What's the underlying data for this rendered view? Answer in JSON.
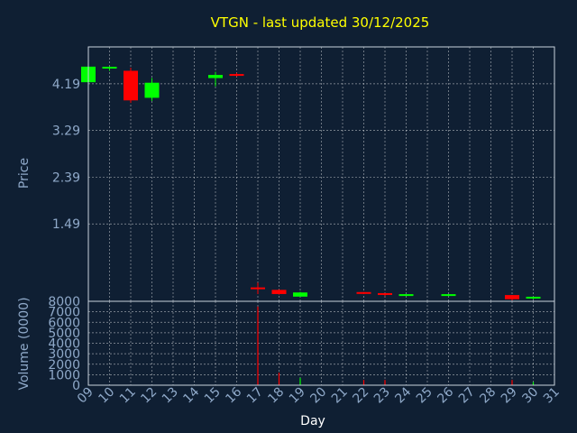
{
  "title": "VTGN - last updated 30/12/2025",
  "colors": {
    "background": "#0f1f33",
    "title": "#ffff00",
    "axis_text": "#8fa9c9",
    "up": "#00ff00",
    "down": "#ff0000"
  },
  "chart_data": [
    {
      "type": "candlestick",
      "ylabel": "Price",
      "yticks": [
        "1.49",
        "2.39",
        "3.29",
        "4.19"
      ],
      "ylim": [
        0.0,
        4.9
      ],
      "grid": true,
      "x": [
        "09",
        "10",
        "11",
        "12",
        "13",
        "14",
        "15",
        "16",
        "17",
        "18",
        "19",
        "20",
        "21",
        "22",
        "23",
        "24",
        "25",
        "26",
        "27",
        "28",
        "29",
        "30",
        "31"
      ],
      "candles": [
        {
          "day": "09",
          "open": 4.22,
          "high": 4.56,
          "low": 4.22,
          "close": 4.52
        },
        {
          "day": "10",
          "open": 4.5,
          "high": 4.52,
          "low": 4.44,
          "close": 4.5
        },
        {
          "day": "11",
          "open": 4.44,
          "high": 4.5,
          "low": 3.82,
          "close": 3.87
        },
        {
          "day": "12",
          "open": 3.92,
          "high": 4.3,
          "low": 3.86,
          "close": 4.21
        },
        {
          "day": "15",
          "open": 4.3,
          "high": 4.42,
          "low": 4.14,
          "close": 4.36
        },
        {
          "day": "16",
          "open": 4.36,
          "high": 4.4,
          "low": 4.33,
          "close": 4.35
        },
        {
          "day": "17",
          "open": 0.25,
          "high": 0.36,
          "low": 0.14,
          "close": 0.24
        },
        {
          "day": "18",
          "open": 0.22,
          "high": 0.23,
          "low": 0.13,
          "close": 0.14
        },
        {
          "day": "19",
          "open": 0.09,
          "high": 0.18,
          "low": 0.09,
          "close": 0.17
        },
        {
          "day": "22",
          "open": 0.16,
          "high": 0.18,
          "low": 0.14,
          "close": 0.15
        },
        {
          "day": "23",
          "open": 0.14,
          "high": 0.15,
          "low": 0.1,
          "close": 0.11
        },
        {
          "day": "24",
          "open": 0.11,
          "high": 0.13,
          "low": 0.1,
          "close": 0.12
        },
        {
          "day": "26",
          "open": 0.11,
          "high": 0.14,
          "low": 0.1,
          "close": 0.12
        },
        {
          "day": "29",
          "open": 0.12,
          "high": 0.12,
          "low": 0.02,
          "close": 0.04
        },
        {
          "day": "30",
          "open": 0.06,
          "high": 0.08,
          "low": 0.04,
          "close": 0.07
        }
      ]
    },
    {
      "type": "bar",
      "ylabel": "Volume (0000)",
      "xlabel": "Day",
      "yticks": [
        "0",
        "1000",
        "2000",
        "3000",
        "4000",
        "5000",
        "6000",
        "7000",
        "8000"
      ],
      "ylim": [
        0,
        8000
      ],
      "grid": true,
      "bars": [
        {
          "day": "17",
          "value": 7500,
          "direction": "down"
        },
        {
          "day": "18",
          "value": 1200,
          "direction": "down"
        },
        {
          "day": "19",
          "value": 700,
          "direction": "up"
        },
        {
          "day": "22",
          "value": 500,
          "direction": "down"
        },
        {
          "day": "23",
          "value": 500,
          "direction": "down"
        },
        {
          "day": "29",
          "value": 500,
          "direction": "down"
        },
        {
          "day": "30",
          "value": 300,
          "direction": "up"
        }
      ]
    }
  ]
}
